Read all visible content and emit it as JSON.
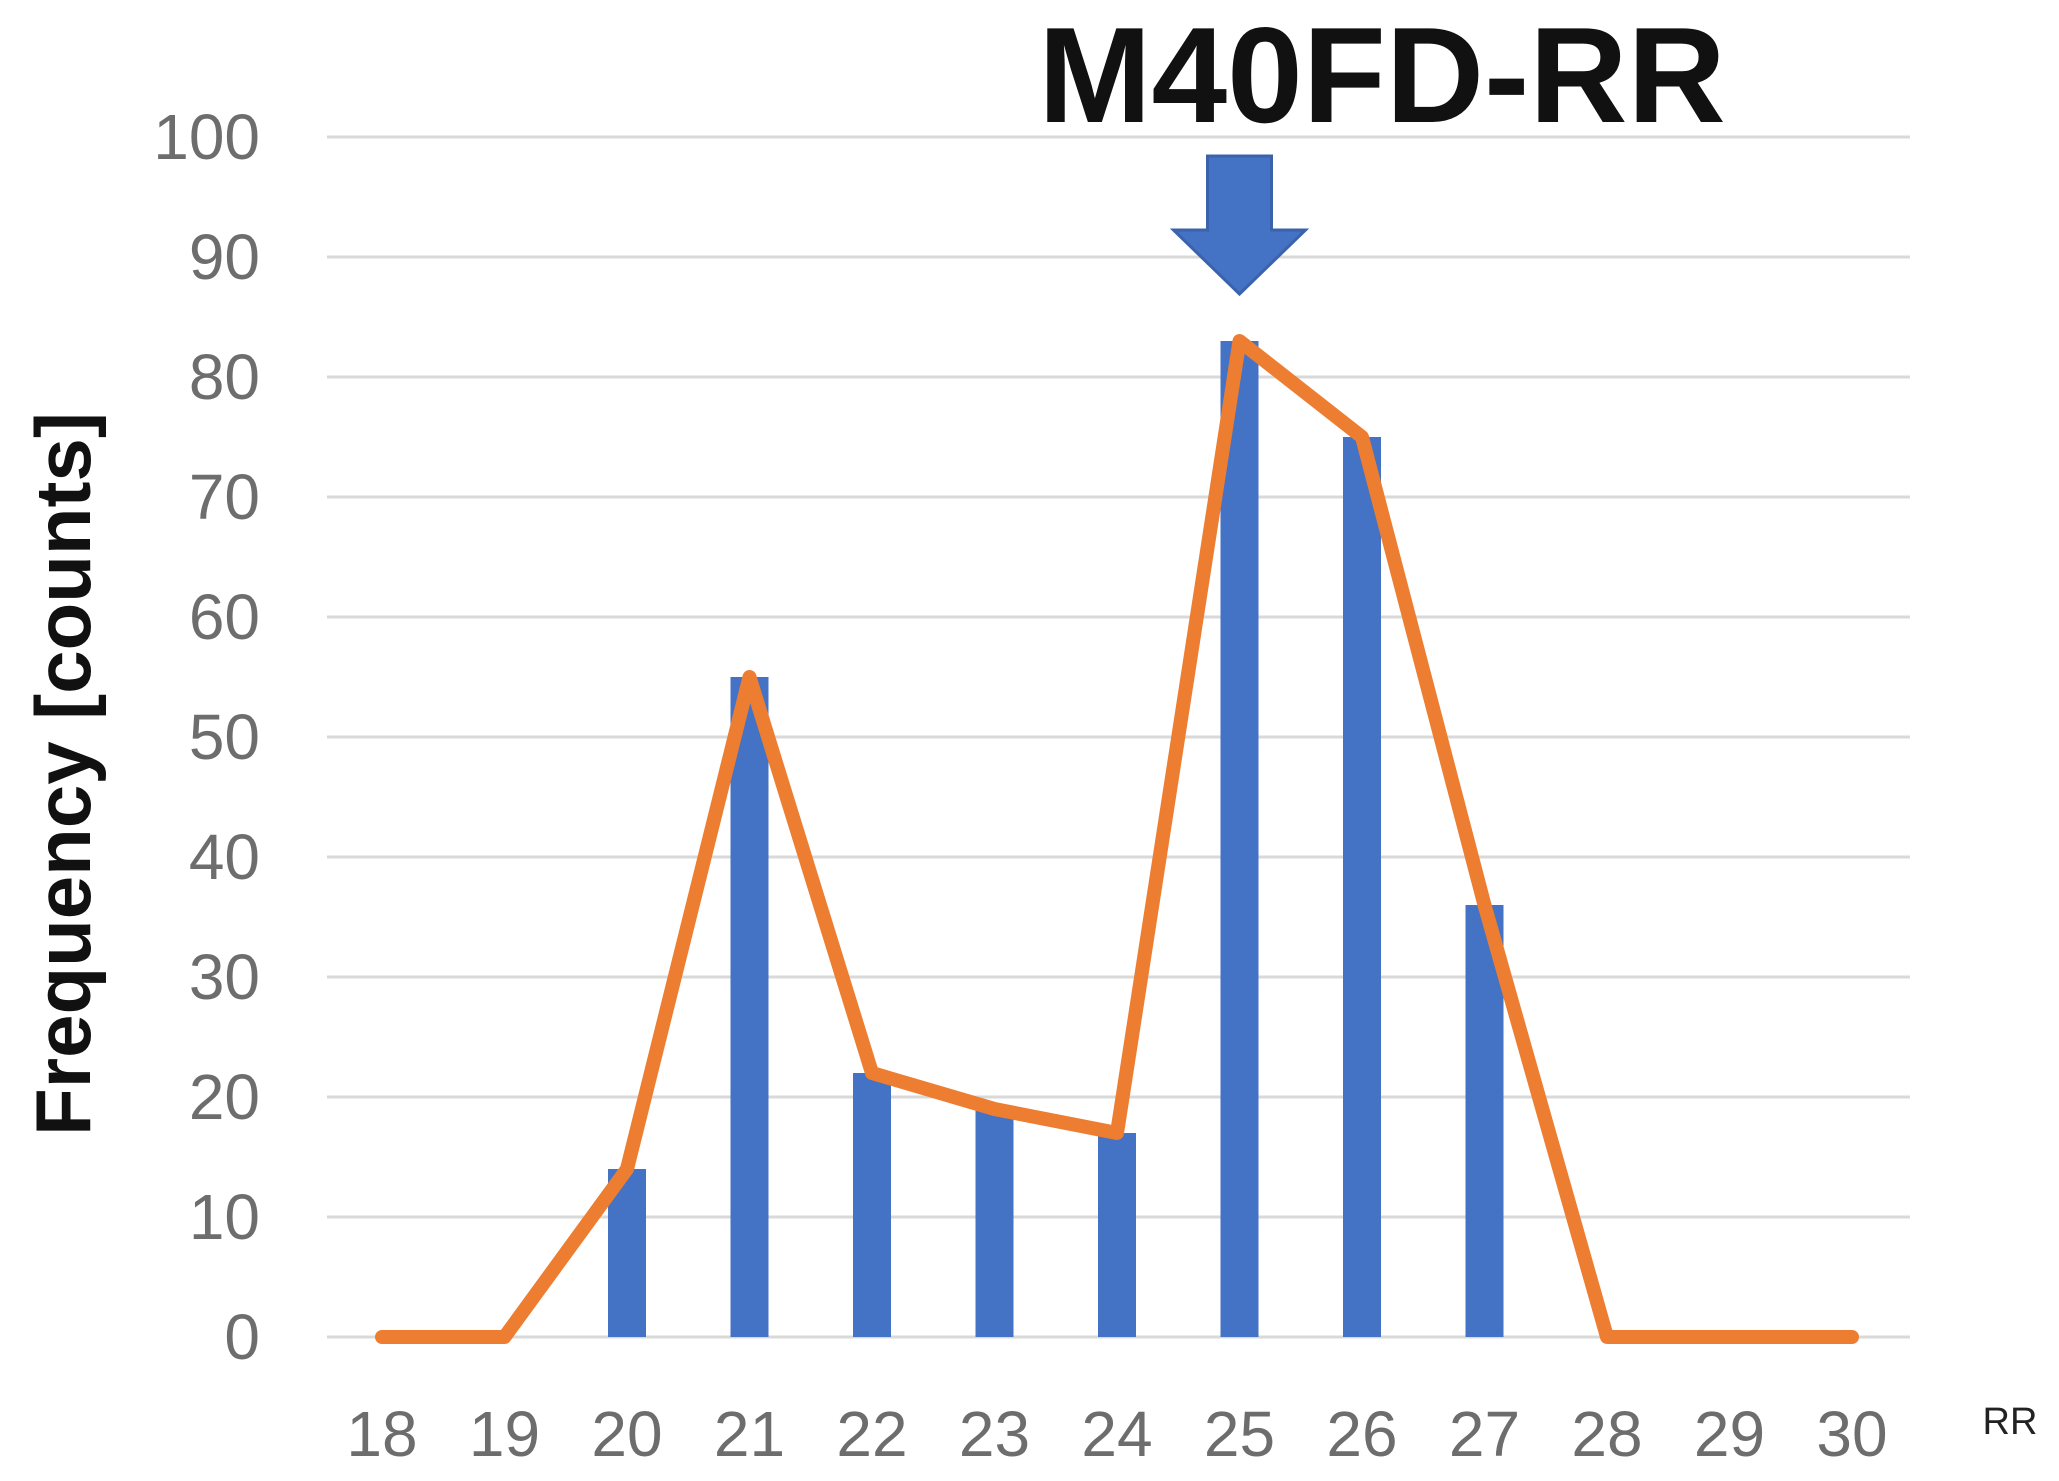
{
  "chart_data": {
    "type": "bar",
    "categories": [
      "18",
      "19",
      "20",
      "21",
      "22",
      "23",
      "24",
      "25",
      "26",
      "27",
      "28",
      "29",
      "30"
    ],
    "series": [
      {
        "type": "bar",
        "values": [
          0,
          0,
          14,
          55,
          22,
          19,
          17,
          83,
          75,
          36,
          0,
          0,
          0
        ],
        "color": "#4472c4"
      },
      {
        "type": "line",
        "values": [
          0,
          0,
          14,
          55,
          22,
          19,
          17,
          83,
          75,
          36,
          0,
          0,
          0
        ],
        "color": "#ed7d31"
      }
    ],
    "title": "",
    "xlabel": "RR",
    "ylabel": "Frequency  [counts]",
    "ylim": [
      0,
      100
    ],
    "y_ticks": [
      "0",
      "10",
      "20",
      "30",
      "40",
      "50",
      "60",
      "70",
      "80",
      "90",
      "100"
    ],
    "grid": true,
    "legend": "none",
    "annotation": {
      "label": "M40FD-RR",
      "target_category": "25",
      "marker": "down-arrow-icon",
      "color": "#4472c4"
    }
  }
}
